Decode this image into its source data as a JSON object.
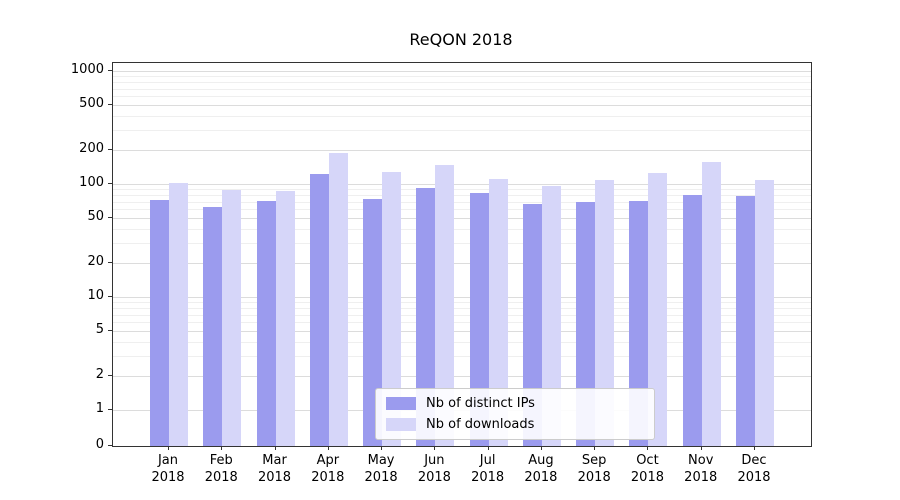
{
  "figure": {
    "title": "ReQON 2018"
  },
  "chart_data": {
    "type": "bar",
    "title": "ReQON 2018",
    "scale": "symlog",
    "grid": true,
    "legend_position": "lower center",
    "categories": [
      "Jan",
      "Feb",
      "Mar",
      "Apr",
      "May",
      "Jun",
      "Jul",
      "Aug",
      "Sep",
      "Oct",
      "Nov",
      "Dec"
    ],
    "year_label": "2018",
    "yticks": [
      0,
      1,
      2,
      5,
      10,
      20,
      50,
      100,
      200,
      500,
      1000
    ],
    "ylim": [
      0,
      1000
    ],
    "series": [
      {
        "name": "Nb of distinct IPs",
        "color": "#9b9bee",
        "values": [
          72,
          62,
          71,
          122,
          74,
          92,
          84,
          67,
          70,
          71,
          80,
          78
        ]
      },
      {
        "name": "Nb of downloads",
        "color": "#d6d6f9",
        "values": [
          102,
          89,
          86,
          188,
          128,
          148,
          110,
          96,
          108,
          124,
          158,
          108
        ]
      }
    ]
  }
}
